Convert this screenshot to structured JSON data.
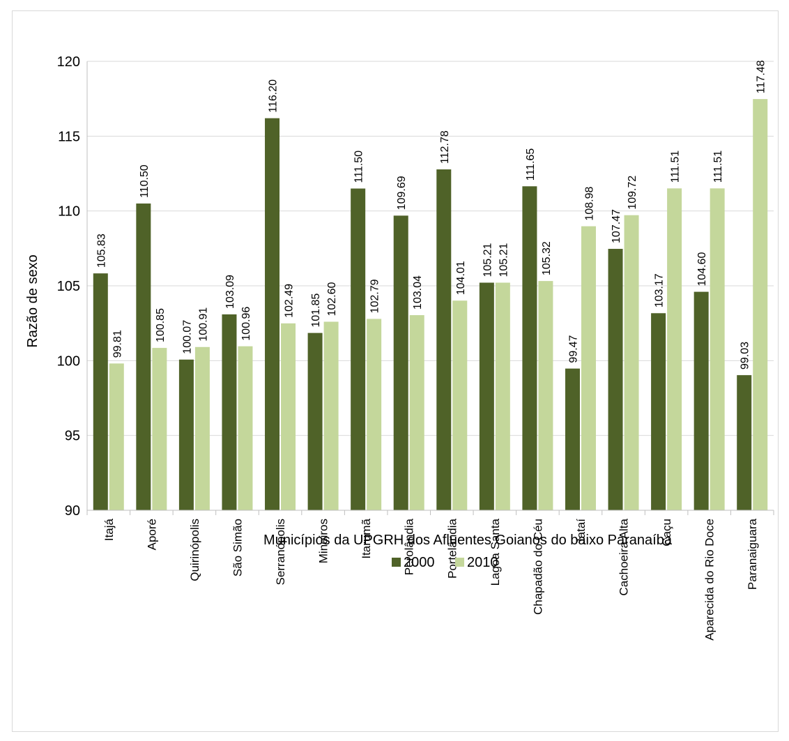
{
  "chart_data": {
    "type": "bar",
    "title": "",
    "xlabel": "Municípios da UPGRH dos Afluentes Goianos do baixo Paranaíba",
    "ylabel": "Razão de sexo",
    "ylim": [
      90,
      120
    ],
    "yticks": [
      90,
      95,
      100,
      105,
      110,
      115,
      120
    ],
    "grid": true,
    "legend_position": "bottom",
    "categories": [
      "Itajá",
      "Aporé",
      "Quirinópolis",
      "São Simão",
      "Serranópolis",
      "Mineiros",
      "Itarumã",
      "Perolândia",
      "Portelândia",
      "Lagoa Santa",
      "Chapadão do Céu",
      "Jataí",
      "Cachoeira Alta",
      "Caçu",
      "Aparecida do Rio Doce",
      "Paranaiguara"
    ],
    "series": [
      {
        "name": "2000",
        "color": "#4f6228",
        "values": [
          105.83,
          110.5,
          100.07,
          103.09,
          116.2,
          101.85,
          111.5,
          109.69,
          112.78,
          105.21,
          111.65,
          99.47,
          107.47,
          103.17,
          104.6,
          99.03
        ]
      },
      {
        "name": "2010",
        "color": "#c4d79b",
        "values": [
          99.81,
          100.85,
          100.91,
          100.96,
          102.49,
          102.6,
          102.79,
          103.04,
          104.01,
          105.21,
          105.32,
          108.98,
          109.72,
          111.51,
          111.51,
          117.48
        ]
      }
    ]
  }
}
